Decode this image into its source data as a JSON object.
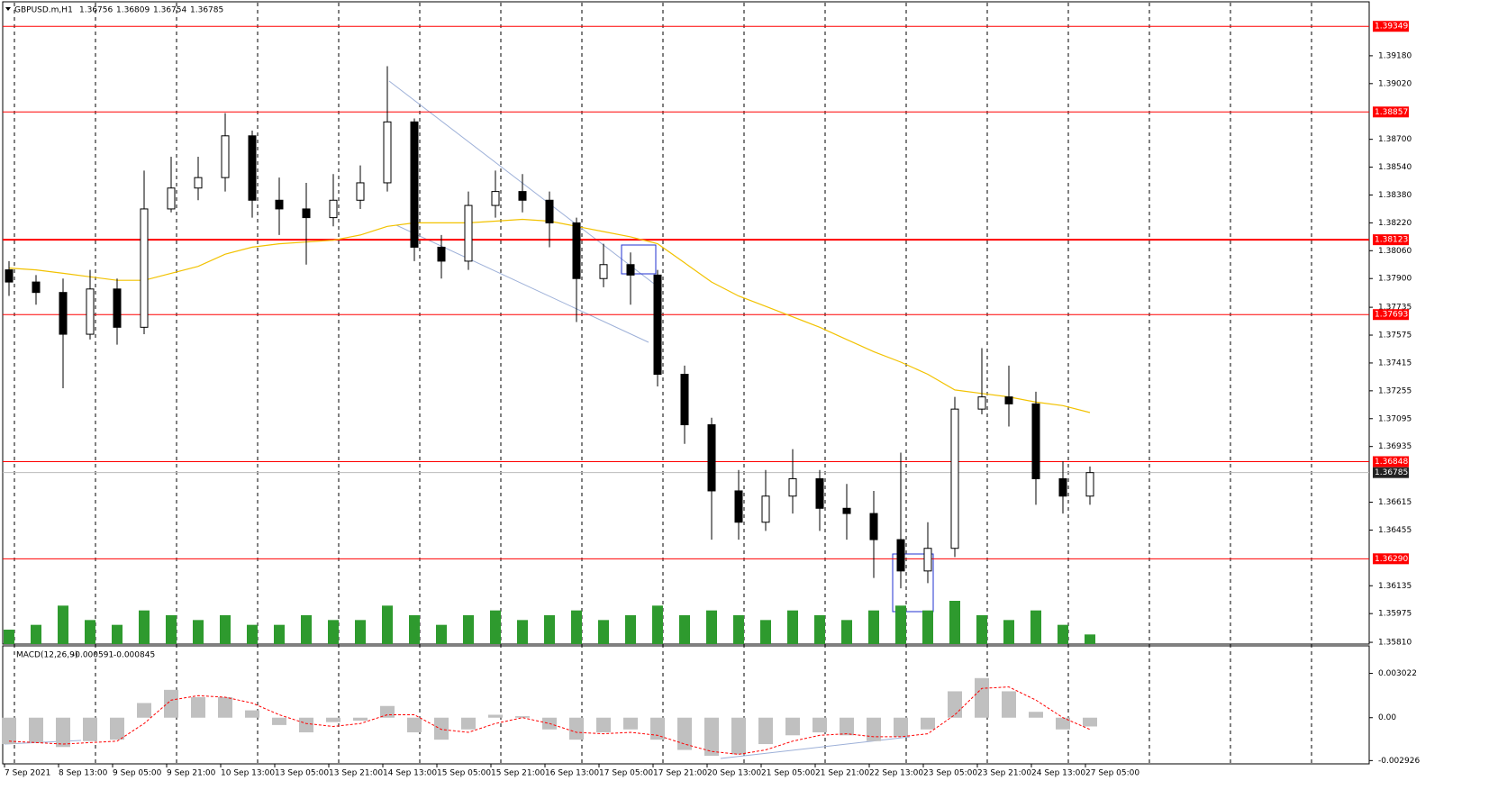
{
  "chart_data": {
    "type": "candlestick",
    "symbol": "GBPUSD.m,H1",
    "header_values": [
      1.36756,
      1.36809,
      1.36754,
      1.36785
    ],
    "x_labels": [
      "7 Sep 2021",
      "8 Sep 13:00",
      "9 Sep 05:00",
      "9 Sep 21:00",
      "10 Sep 13:00",
      "13 Sep 05:00",
      "13 Sep 21:00",
      "14 Sep 13:00",
      "15 Sep 05:00",
      "15 Sep 21:00",
      "16 Sep 13:00",
      "17 Sep 05:00",
      "17 Sep 21:00",
      "20 Sep 13:00",
      "21 Sep 05:00",
      "21 Sep 21:00",
      "22 Sep 13:00",
      "23 Sep 05:00",
      "23 Sep 21:00",
      "24 Sep 13:00",
      "27 Sep 05:00"
    ],
    "open": [
      1.3795,
      1.3788,
      1.3782,
      1.3758,
      1.3784,
      1.3762,
      1.383,
      1.3842,
      1.3848,
      1.3872,
      1.3835,
      1.383,
      1.3825,
      1.3835,
      1.3845,
      1.388,
      1.3808,
      1.38,
      1.3832,
      1.384,
      1.3835,
      1.3822,
      1.379,
      1.3798,
      1.3792,
      1.3735,
      1.3706,
      1.3668,
      1.365,
      1.3665,
      1.3675,
      1.3658,
      1.3655,
      1.364,
      1.3622,
      1.3635,
      1.3715,
      1.3722,
      1.3718,
      1.3675,
      1.3665
    ],
    "high": [
      1.38,
      1.3792,
      1.379,
      1.3795,
      1.379,
      1.3852,
      1.386,
      1.386,
      1.3885,
      1.3875,
      1.3848,
      1.3845,
      1.385,
      1.3855,
      1.3912,
      1.3882,
      1.3815,
      1.384,
      1.3852,
      1.385,
      1.384,
      1.3825,
      1.381,
      1.3805,
      1.3795,
      1.374,
      1.371,
      1.368,
      1.368,
      1.3692,
      1.368,
      1.3672,
      1.3668,
      1.369,
      1.365,
      1.3722,
      1.375,
      1.374,
      1.3725,
      1.3685,
      1.3682
    ],
    "low": [
      1.378,
      1.3775,
      1.3727,
      1.3755,
      1.3752,
      1.3758,
      1.3828,
      1.3835,
      1.384,
      1.3825,
      1.3815,
      1.3798,
      1.382,
      1.383,
      1.384,
      1.38,
      1.379,
      1.3795,
      1.3825,
      1.3828,
      1.3808,
      1.3765,
      1.3785,
      1.3775,
      1.3728,
      1.3695,
      1.364,
      1.364,
      1.3645,
      1.3655,
      1.3645,
      1.364,
      1.3618,
      1.3612,
      1.3615,
      1.363,
      1.3712,
      1.3705,
      1.366,
      1.3655,
      1.366
    ],
    "close": [
      1.3788,
      1.3782,
      1.3758,
      1.3784,
      1.3762,
      1.383,
      1.3842,
      1.3848,
      1.3872,
      1.3835,
      1.383,
      1.3825,
      1.3835,
      1.3845,
      1.388,
      1.3808,
      1.38,
      1.3832,
      1.384,
      1.3835,
      1.3822,
      1.379,
      1.3798,
      1.3792,
      1.3735,
      1.3706,
      1.3668,
      1.365,
      1.3665,
      1.3675,
      1.3658,
      1.3655,
      1.364,
      1.3622,
      1.3635,
      1.3715,
      1.3722,
      1.3718,
      1.3675,
      1.3665,
      1.36785
    ],
    "ma": [
      1.3796,
      1.3795,
      1.3793,
      1.3791,
      1.3789,
      1.3789,
      1.3793,
      1.3797,
      1.3804,
      1.3808,
      1.381,
      1.3811,
      1.3812,
      1.3815,
      1.382,
      1.3822,
      1.3822,
      1.3822,
      1.3823,
      1.3824,
      1.3823,
      1.382,
      1.3817,
      1.3814,
      1.381,
      1.3799,
      1.3788,
      1.378,
      1.3774,
      1.3768,
      1.3762,
      1.3755,
      1.3748,
      1.3742,
      1.3735,
      1.3726,
      1.3724,
      1.3722,
      1.3719,
      1.3717,
      1.3713
    ],
    "ma_color": "#f2c200",
    "volume": [
      15,
      20,
      40,
      25,
      20,
      35,
      30,
      25,
      30,
      20,
      20,
      30,
      25,
      25,
      40,
      30,
      20,
      30,
      35,
      25,
      30,
      35,
      25,
      30,
      40,
      30,
      35,
      30,
      25,
      35,
      30,
      25,
      35,
      40,
      35,
      45,
      30,
      25,
      35,
      20,
      10
    ],
    "volume_color": "#2e9a2e",
    "ylim": [
      1.358,
      1.3949
    ],
    "yticks": [
      {
        "value": 1.3918,
        "label": "1.39180"
      },
      {
        "value": 1.3902,
        "label": "1.39020"
      },
      {
        "value": 1.387,
        "label": "1.38700"
      },
      {
        "value": 1.3854,
        "label": "1.38540"
      },
      {
        "value": 1.3838,
        "label": "1.38380"
      },
      {
        "value": 1.3822,
        "label": "1.38220"
      },
      {
        "value": 1.3806,
        "label": "1.38060"
      },
      {
        "value": 1.379,
        "label": "1.37900"
      },
      1.37735,
      1.37575,
      1.37415,
      1.37255,
      1.37095,
      1.36935,
      1.36615,
      1.36455,
      1.36135,
      1.35975,
      {
        "value": 1.3581,
        "label": "1.35810"
      }
    ],
    "levels": [
      1.39349,
      1.38857,
      1.38123,
      1.37693,
      1.36848,
      {
        "value": 1.3629,
        "label": "1.36290"
      }
    ],
    "level_color": "#ff0000",
    "current_price": 1.36785,
    "macd": {
      "label": "MACD(12,26,9)",
      "values_shown": [
        -0.000591,
        -0.000845
      ],
      "ylim": [
        -0.00315,
        0.0049
      ],
      "yticks": [
        0.003022,
        {
          "value": 0,
          "label": "0.00"
        },
        -0.002926
      ],
      "histogram": [
        -0.0018,
        -0.0017,
        -0.002,
        -0.0016,
        -0.0015,
        0.001,
        0.0019,
        0.0014,
        0.0014,
        0.0005,
        -0.0005,
        -0.001,
        -0.0003,
        -0.0002,
        0.0008,
        -0.001,
        -0.0015,
        -0.0008,
        0.0002,
        0.0001,
        -0.0008,
        -0.0015,
        -0.001,
        -0.0008,
        -0.0015,
        -0.0022,
        -0.0026,
        -0.0025,
        -0.0018,
        -0.0012,
        -0.001,
        -0.0012,
        -0.0016,
        -0.0013,
        -0.0008,
        0.0018,
        0.0027,
        0.0018,
        0.0004,
        -0.0008,
        -0.0006
      ],
      "signal": [
        -0.0016,
        -0.0017,
        -0.0018,
        -0.0017,
        -0.0016,
        -0.0004,
        0.0012,
        0.0015,
        0.0014,
        0.001,
        0.0002,
        -0.0004,
        -0.0006,
        -0.0004,
        0.0002,
        0.0002,
        -0.0008,
        -0.001,
        -0.0004,
        0,
        -0.0004,
        -0.001,
        -0.0011,
        -0.001,
        -0.0012,
        -0.0018,
        -0.0023,
        -0.0025,
        -0.0022,
        -0.0016,
        -0.0012,
        -0.0011,
        -0.0013,
        -0.0013,
        -0.0011,
        0.0002,
        0.002,
        0.0021,
        0.0012,
        0,
        -0.0008
      ],
      "hist_color": "#c0c0c0",
      "signal_color": "#ff0000"
    }
  }
}
